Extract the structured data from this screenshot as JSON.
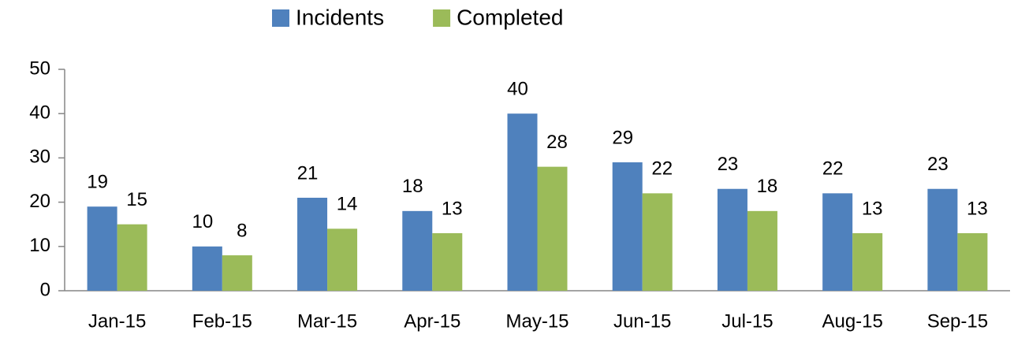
{
  "chart_data": {
    "type": "bar",
    "categories": [
      "Jan-15",
      "Feb-15",
      "Mar-15",
      "Apr-15",
      "May-15",
      "Jun-15",
      "Jul-15",
      "Aug-15",
      "Sep-15"
    ],
    "series": [
      {
        "name": "Incidents",
        "color": "#4f81bd",
        "values": [
          19,
          10,
          21,
          18,
          40,
          29,
          23,
          22,
          23
        ]
      },
      {
        "name": "Completed",
        "color": "#9bbb59",
        "values": [
          15,
          8,
          14,
          13,
          28,
          22,
          18,
          13,
          13
        ]
      }
    ],
    "ylim": [
      0,
      50
    ],
    "yticks": [
      0,
      10,
      20,
      30,
      40,
      50
    ],
    "grid": false,
    "legend": "top"
  }
}
